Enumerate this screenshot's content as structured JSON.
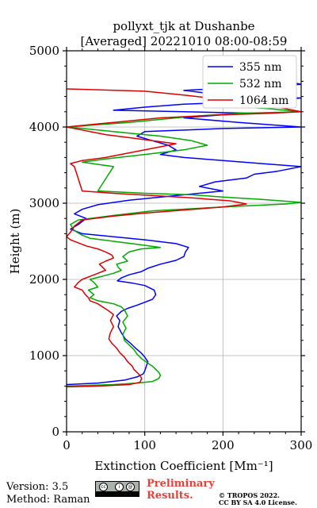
{
  "chart_data": {
    "type": "line",
    "title_line1": "pollyxt_tjk at Dushanbe",
    "title_line2": "[Averaged] 20221010 08:00-08:59",
    "xlabel": "Extinction Coefficient [Mm⁻¹]",
    "ylabel": "Height (m)",
    "xlim": [
      0,
      300
    ],
    "ylim": [
      0,
      5000
    ],
    "xticks": [
      "0",
      "100",
      "200",
      "300"
    ],
    "yticks": [
      "0",
      "1000",
      "2000",
      "3000",
      "4000",
      "5000"
    ],
    "grid": true,
    "legend_position": "top-right",
    "series": [
      {
        "name": "355 nm",
        "color": "#0000ff",
        "points": [
          [
            0,
            620
          ],
          [
            40,
            640
          ],
          [
            75,
            680
          ],
          [
            90,
            720
          ],
          [
            98,
            760
          ],
          [
            100,
            800
          ],
          [
            102,
            860
          ],
          [
            104,
            920
          ],
          [
            100,
            980
          ],
          [
            95,
            1040
          ],
          [
            88,
            1100
          ],
          [
            82,
            1160
          ],
          [
            75,
            1220
          ],
          [
            70,
            1300
          ],
          [
            66,
            1380
          ],
          [
            68,
            1460
          ],
          [
            64,
            1520
          ],
          [
            70,
            1580
          ],
          [
            78,
            1620
          ],
          [
            90,
            1660
          ],
          [
            100,
            1700
          ],
          [
            110,
            1740
          ],
          [
            114,
            1800
          ],
          [
            112,
            1860
          ],
          [
            100,
            1920
          ],
          [
            85,
            1950
          ],
          [
            65,
            1980
          ],
          [
            70,
            2020
          ],
          [
            80,
            2060
          ],
          [
            95,
            2100
          ],
          [
            105,
            2150
          ],
          [
            120,
            2200
          ],
          [
            140,
            2250
          ],
          [
            150,
            2300
          ],
          [
            152,
            2360
          ],
          [
            156,
            2420
          ],
          [
            140,
            2470
          ],
          [
            100,
            2520
          ],
          [
            60,
            2560
          ],
          [
            20,
            2600
          ],
          [
            5,
            2660
          ],
          [
            15,
            2720
          ],
          [
            25,
            2800
          ],
          [
            10,
            2860
          ],
          [
            20,
            2920
          ],
          [
            40,
            2980
          ],
          [
            80,
            3040
          ],
          [
            140,
            3100
          ],
          [
            200,
            3160
          ],
          [
            170,
            3220
          ],
          [
            190,
            3280
          ],
          [
            230,
            3330
          ],
          [
            240,
            3380
          ],
          [
            270,
            3420
          ],
          [
            300,
            3480
          ],
          [
            250,
            3520
          ],
          [
            200,
            3560
          ],
          [
            150,
            3600
          ],
          [
            120,
            3640
          ],
          [
            140,
            3700
          ],
          [
            130,
            3760
          ],
          [
            110,
            3820
          ],
          [
            90,
            3880
          ],
          [
            100,
            3940
          ],
          [
            200,
            3980
          ],
          [
            300,
            4000
          ],
          [
            220,
            4060
          ],
          [
            150,
            4120
          ],
          [
            200,
            4160
          ],
          [
            240,
            4180
          ],
          [
            150,
            4200
          ],
          [
            60,
            4220
          ],
          [
            100,
            4260
          ],
          [
            150,
            4300
          ],
          [
            250,
            4340
          ],
          [
            300,
            4380
          ],
          [
            200,
            4420
          ],
          [
            150,
            4480
          ],
          [
            240,
            4530
          ],
          [
            300,
            4560
          ],
          [
            280,
            4600
          ]
        ]
      },
      {
        "name": "532 nm",
        "color": "#00aa00",
        "points": [
          [
            0,
            600
          ],
          [
            60,
            620
          ],
          [
            90,
            640
          ],
          [
            110,
            660
          ],
          [
            118,
            700
          ],
          [
            120,
            740
          ],
          [
            118,
            780
          ],
          [
            114,
            820
          ],
          [
            110,
            860
          ],
          [
            104,
            900
          ],
          [
            96,
            960
          ],
          [
            90,
            1020
          ],
          [
            86,
            1080
          ],
          [
            80,
            1140
          ],
          [
            74,
            1200
          ],
          [
            72,
            1280
          ],
          [
            76,
            1360
          ],
          [
            72,
            1440
          ],
          [
            78,
            1520
          ],
          [
            74,
            1600
          ],
          [
            70,
            1640
          ],
          [
            60,
            1680
          ],
          [
            40,
            1720
          ],
          [
            30,
            1760
          ],
          [
            35,
            1800
          ],
          [
            28,
            1860
          ],
          [
            40,
            1900
          ],
          [
            35,
            1960
          ],
          [
            30,
            2000
          ],
          [
            45,
            2040
          ],
          [
            60,
            2080
          ],
          [
            70,
            2120
          ],
          [
            66,
            2160
          ],
          [
            64,
            2200
          ],
          [
            78,
            2240
          ],
          [
            72,
            2300
          ],
          [
            80,
            2360
          ],
          [
            95,
            2400
          ],
          [
            120,
            2420
          ],
          [
            90,
            2460
          ],
          [
            60,
            2500
          ],
          [
            30,
            2540
          ],
          [
            20,
            2580
          ],
          [
            10,
            2640
          ],
          [
            5,
            2720
          ],
          [
            15,
            2780
          ],
          [
            60,
            2840
          ],
          [
            110,
            2900
          ],
          [
            200,
            2950
          ],
          [
            280,
            2990
          ],
          [
            300,
            3010
          ],
          [
            250,
            3050
          ],
          [
            200,
            3080
          ],
          [
            160,
            3110
          ],
          [
            100,
            3130
          ],
          [
            40,
            3160
          ],
          [
            60,
            3480
          ],
          [
            20,
            3540
          ],
          [
            50,
            3580
          ],
          [
            100,
            3640
          ],
          [
            150,
            3700
          ],
          [
            180,
            3760
          ],
          [
            160,
            3820
          ],
          [
            120,
            3880
          ],
          [
            80,
            3920
          ],
          [
            40,
            3960
          ],
          [
            0,
            4000
          ],
          [
            80,
            4060
          ],
          [
            160,
            4140
          ],
          [
            220,
            4180
          ],
          [
            300,
            4200
          ],
          [
            260,
            4240
          ],
          [
            200,
            4280
          ]
        ]
      },
      {
        "name": "1064 nm",
        "color": "#dd0000",
        "points": [
          [
            0,
            590
          ],
          [
            40,
            600
          ],
          [
            80,
            620
          ],
          [
            94,
            650
          ],
          [
            96,
            700
          ],
          [
            94,
            740
          ],
          [
            90,
            780
          ],
          [
            86,
            820
          ],
          [
            84,
            860
          ],
          [
            78,
            920
          ],
          [
            74,
            980
          ],
          [
            68,
            1040
          ],
          [
            64,
            1100
          ],
          [
            58,
            1160
          ],
          [
            54,
            1220
          ],
          [
            56,
            1300
          ],
          [
            60,
            1380
          ],
          [
            56,
            1460
          ],
          [
            60,
            1540
          ],
          [
            52,
            1600
          ],
          [
            46,
            1640
          ],
          [
            40,
            1680
          ],
          [
            30,
            1720
          ],
          [
            28,
            1760
          ],
          [
            24,
            1800
          ],
          [
            20,
            1860
          ],
          [
            10,
            1900
          ],
          [
            15,
            1960
          ],
          [
            20,
            2000
          ],
          [
            30,
            2040
          ],
          [
            40,
            2080
          ],
          [
            50,
            2120
          ],
          [
            46,
            2160
          ],
          [
            42,
            2200
          ],
          [
            50,
            2240
          ],
          [
            60,
            2280
          ],
          [
            58,
            2320
          ],
          [
            50,
            2360
          ],
          [
            40,
            2400
          ],
          [
            25,
            2440
          ],
          [
            15,
            2480
          ],
          [
            5,
            2520
          ],
          [
            0,
            2560
          ],
          [
            5,
            2620
          ],
          [
            10,
            2700
          ],
          [
            20,
            2780
          ],
          [
            60,
            2830
          ],
          [
            100,
            2870
          ],
          [
            150,
            2910
          ],
          [
            200,
            2950
          ],
          [
            230,
            2990
          ],
          [
            210,
            3030
          ],
          [
            160,
            3070
          ],
          [
            110,
            3100
          ],
          [
            60,
            3130
          ],
          [
            20,
            3160
          ],
          [
            10,
            3480
          ],
          [
            5,
            3520
          ],
          [
            20,
            3560
          ],
          [
            50,
            3600
          ],
          [
            80,
            3660
          ],
          [
            110,
            3720
          ],
          [
            140,
            3780
          ],
          [
            110,
            3820
          ],
          [
            80,
            3860
          ],
          [
            50,
            3900
          ],
          [
            20,
            3960
          ],
          [
            0,
            4000
          ],
          [
            60,
            4060
          ],
          [
            120,
            4120
          ],
          [
            200,
            4160
          ],
          [
            260,
            4180
          ],
          [
            300,
            4200
          ],
          [
            250,
            4300
          ],
          [
            200,
            4360
          ],
          [
            150,
            4420
          ],
          [
            100,
            4470
          ],
          [
            0,
            4500
          ]
        ]
      }
    ]
  },
  "footer": {
    "version": "Version: 3.5",
    "method": "Method: Raman",
    "preliminary_line1": "Preliminary",
    "preliminary_line2": "Results.",
    "copyright_line1": "© TROPOS 2022.",
    "copyright_line2": "CC BY SA 4.0 License."
  },
  "license_badge_icon": "cc-by-sa-icon"
}
